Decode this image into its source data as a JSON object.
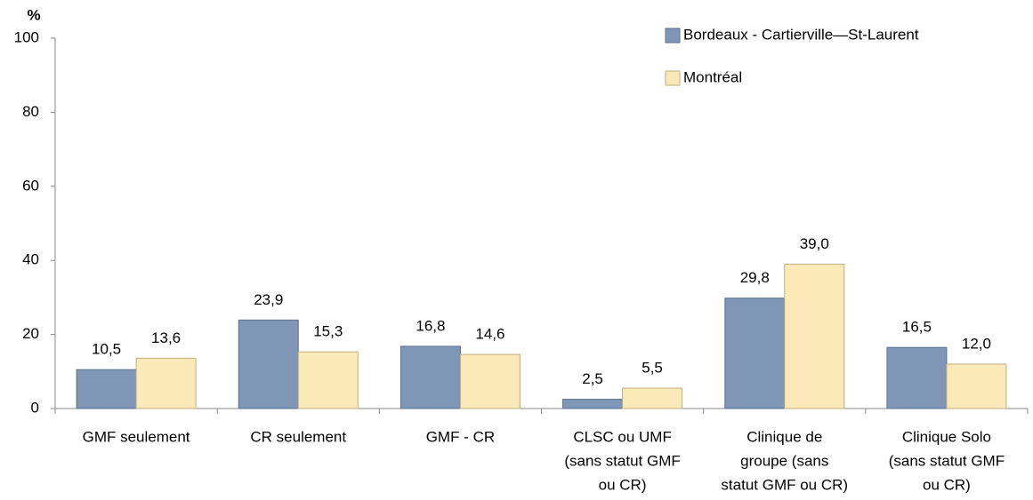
{
  "chart_data": {
    "type": "bar",
    "y_label": "%",
    "categories": [
      [
        "GMF seulement"
      ],
      [
        "CR seulement"
      ],
      [
        "GMF - CR"
      ],
      [
        "CLSC ou UMF",
        "(sans statut GMF",
        "ou CR)"
      ],
      [
        "Clinique  de",
        "groupe (sans",
        "statut GMF ou CR)"
      ],
      [
        "Clinique  Solo",
        "(sans statut GMF",
        "ou CR)"
      ]
    ],
    "series": [
      {
        "name": "Bordeaux - Cartierville—St-Laurent",
        "color": "#7f96b6",
        "edge": "#5d7190",
        "values": [
          10.5,
          23.9,
          16.8,
          2.5,
          29.8,
          16.5
        ],
        "value_labels": [
          "10,5",
          "23,9",
          "16,8",
          "2,5",
          "29,8",
          "16,5"
        ]
      },
      {
        "name": "Montréal",
        "color": "#fce9b8",
        "edge": "#bfae80",
        "values": [
          13.6,
          15.3,
          14.6,
          5.5,
          39.0,
          12.0
        ],
        "value_labels": [
          "13,6",
          "15,3",
          "14,6",
          "5,5",
          "39,0",
          "12,0"
        ]
      }
    ],
    "ylim": [
      0,
      100
    ],
    "yticks": [
      0,
      20,
      40,
      60,
      80,
      100
    ],
    "grid": false,
    "legend": "top-right"
  }
}
